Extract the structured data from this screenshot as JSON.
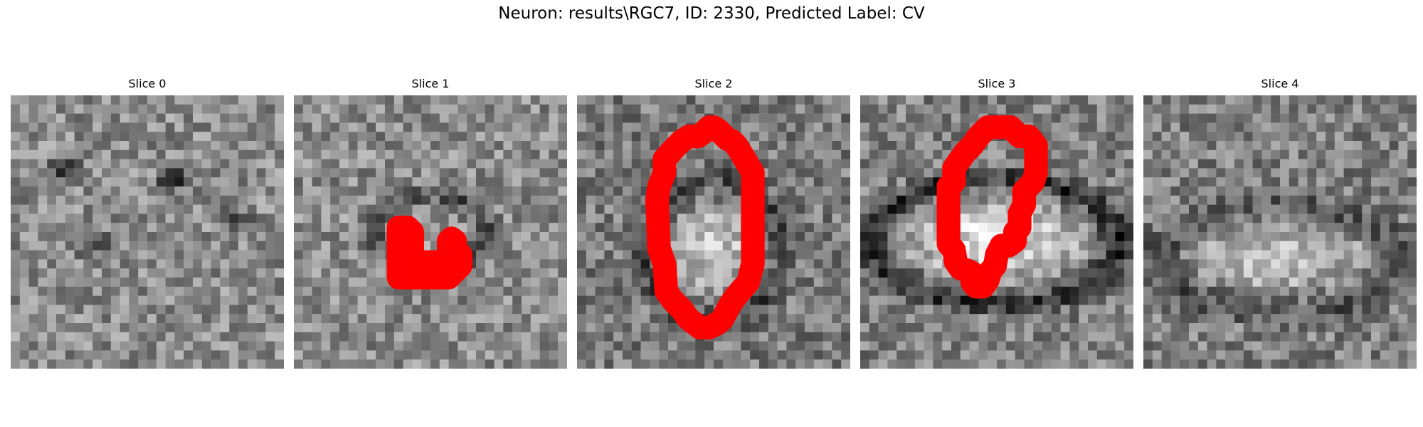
{
  "figure": {
    "title": "Neuron: results\\RGC7, ID: 2330, Predicted Label: CV"
  },
  "panels": [
    {
      "title": "Slice 0",
      "has_contour": false
    },
    {
      "title": "Slice 1",
      "has_contour": true
    },
    {
      "title": "Slice 2",
      "has_contour": true
    },
    {
      "title": "Slice 3",
      "has_contour": true
    },
    {
      "title": "Slice 4",
      "has_contour": false
    }
  ],
  "image": {
    "colormap": "grayscale",
    "contour_color": "#ff0000"
  }
}
